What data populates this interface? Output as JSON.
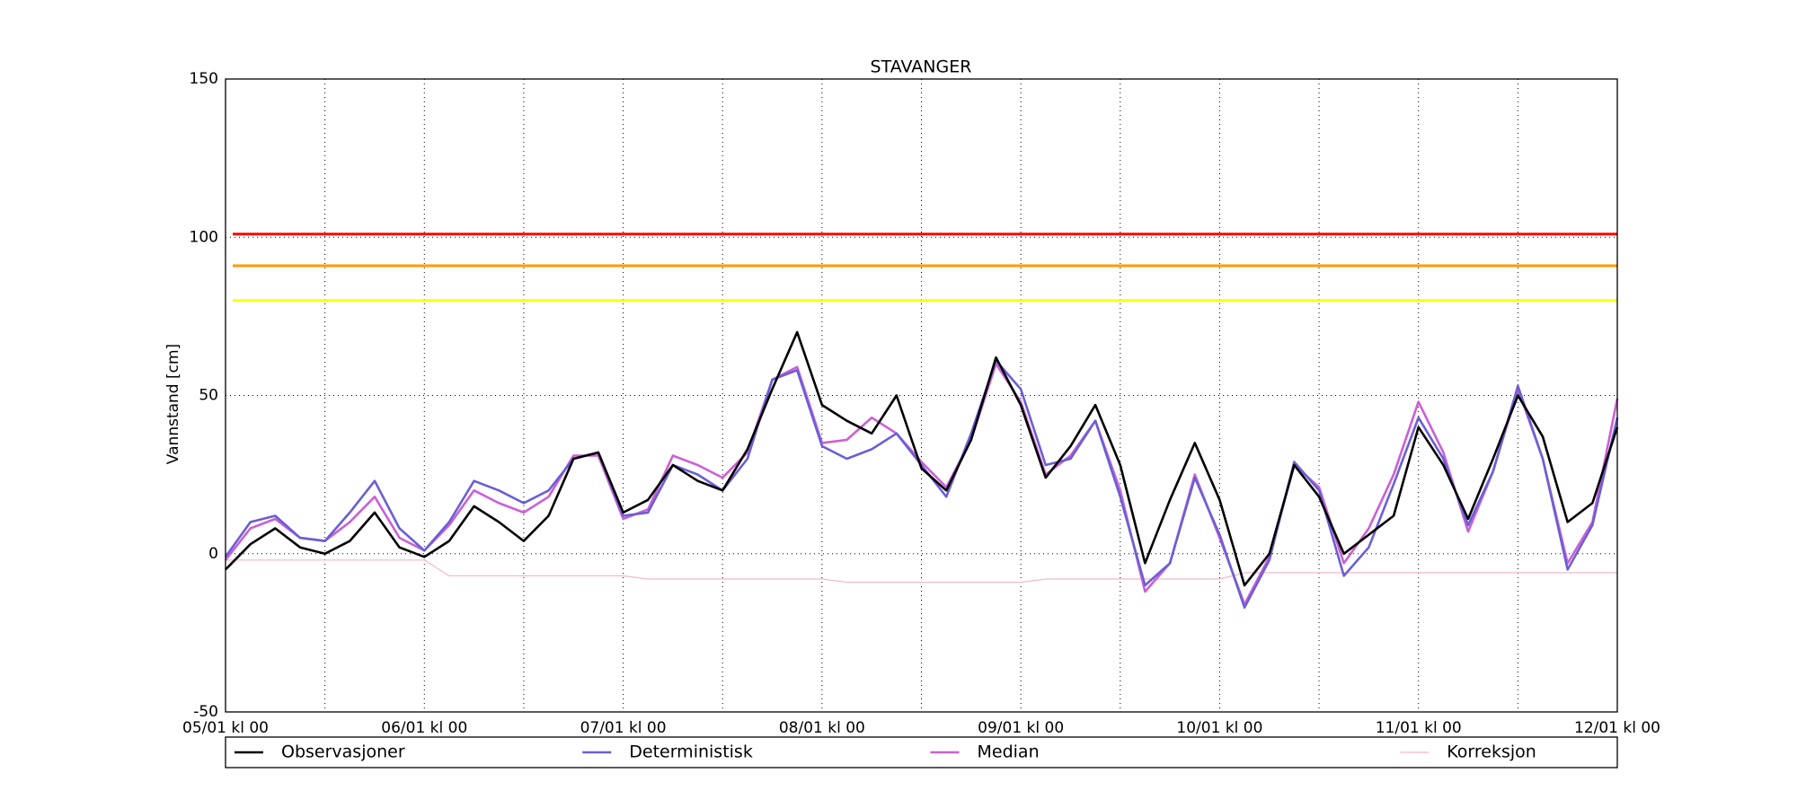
{
  "chart_data": {
    "type": "line",
    "title": "STAVANGER",
    "y_label": "Vannstand [cm]",
    "x": [
      0,
      3,
      6,
      9,
      12,
      15,
      18,
      21,
      24,
      27,
      30,
      33,
      36,
      39,
      42,
      45,
      48,
      51,
      54,
      57,
      60,
      63,
      66,
      69,
      72,
      75,
      78,
      81,
      84,
      87,
      90,
      93,
      96,
      99,
      102,
      105,
      108,
      111,
      114,
      117,
      120,
      123,
      126,
      129,
      132,
      135,
      138,
      141,
      144,
      147,
      150,
      153,
      156,
      159,
      162,
      165,
      168
    ],
    "series": [
      {
        "name": "Observasjoner",
        "color": "#000000",
        "values": [
          -5,
          3,
          8,
          2,
          0,
          4,
          13,
          2,
          -1,
          4,
          15,
          10,
          4,
          12,
          30,
          32,
          13,
          17,
          28,
          23,
          20,
          33,
          52,
          70,
          47,
          42,
          38,
          50,
          27,
          20,
          36,
          62,
          47,
          24,
          34,
          47,
          28,
          -3,
          17,
          35,
          17,
          -10,
          0,
          28,
          18,
          0,
          6,
          12,
          40,
          28,
          11,
          30,
          50,
          37,
          10,
          16,
          40
        ]
      },
      {
        "name": "Deterministisk",
        "color": "#6a5fd5",
        "values": [
          -1,
          10,
          12,
          5,
          4,
          13,
          23,
          8,
          1,
          10,
          23,
          20,
          16,
          20,
          30,
          32,
          12,
          13,
          28,
          25,
          20,
          30,
          55,
          58,
          34,
          30,
          33,
          38,
          28,
          18,
          38,
          61,
          52,
          28,
          30,
          42,
          18,
          -10,
          -3,
          24,
          6,
          -17,
          -2,
          29,
          20,
          -7,
          2,
          22,
          43,
          30,
          9,
          26,
          53,
          30,
          -5,
          9,
          43
        ]
      },
      {
        "name": "Median",
        "color": "#cc5fd5",
        "values": [
          -2,
          8,
          11,
          5,
          4,
          10,
          18,
          5,
          1,
          9,
          20,
          16,
          13,
          18,
          31,
          31,
          11,
          14,
          31,
          28,
          24,
          32,
          55,
          59,
          35,
          36,
          43,
          38,
          29,
          21,
          36,
          60,
          48,
          25,
          31,
          42,
          20,
          -12,
          -3,
          25,
          5,
          -16,
          -1,
          28,
          21,
          -3,
          8,
          25,
          48,
          32,
          7,
          26,
          52,
          30,
          -3,
          10,
          49
        ]
      },
      {
        "name": "Korreksjon",
        "color": "#f5b8c8",
        "values": [
          -2,
          -2,
          -2,
          -2,
          -2,
          -2,
          -2,
          -2,
          -2,
          -7,
          -7,
          -7,
          -7,
          -7,
          -7,
          -7,
          -7,
          -8,
          -8,
          -8,
          -8,
          -8,
          -8,
          -8,
          -8,
          -9,
          -9,
          -9,
          -9,
          -9,
          -9,
          -9,
          -9,
          -8,
          -8,
          -8,
          -8,
          -8,
          -8,
          -8,
          -8,
          -6,
          -6,
          -6,
          -6,
          -6,
          -6,
          -6,
          -6,
          -6,
          -6,
          -6,
          -6,
          -6,
          -6,
          -6,
          -6
        ]
      }
    ],
    "thresholds": [
      {
        "value": 101,
        "color": "#ff0000"
      },
      {
        "value": 91,
        "color": "#ff9900"
      },
      {
        "value": 80,
        "color": "#ffff00"
      }
    ],
    "xlim": [
      0,
      168
    ],
    "xticks": [
      {
        "value": 0,
        "label": "05/01 kl 00"
      },
      {
        "value": 12,
        "label": null
      },
      {
        "value": 24,
        "label": "06/01 kl 00"
      },
      {
        "value": 36,
        "label": null
      },
      {
        "value": 48,
        "label": "07/01 kl 00"
      },
      {
        "value": 60,
        "label": null
      },
      {
        "value": 72,
        "label": "08/01 kl 00"
      },
      {
        "value": 84,
        "label": null
      },
      {
        "value": 96,
        "label": "09/01 kl 00"
      },
      {
        "value": 108,
        "label": null
      },
      {
        "value": 120,
        "label": "10/01 kl 00"
      },
      {
        "value": 132,
        "label": null
      },
      {
        "value": 144,
        "label": "11/01 kl 00"
      },
      {
        "value": 156,
        "label": null
      },
      {
        "value": 168,
        "label": "12/01 kl 00"
      }
    ],
    "ylim": [
      -50,
      150
    ],
    "yticks": [
      -50,
      0,
      50,
      100,
      150
    ],
    "grid": true,
    "legend": "bottom"
  }
}
